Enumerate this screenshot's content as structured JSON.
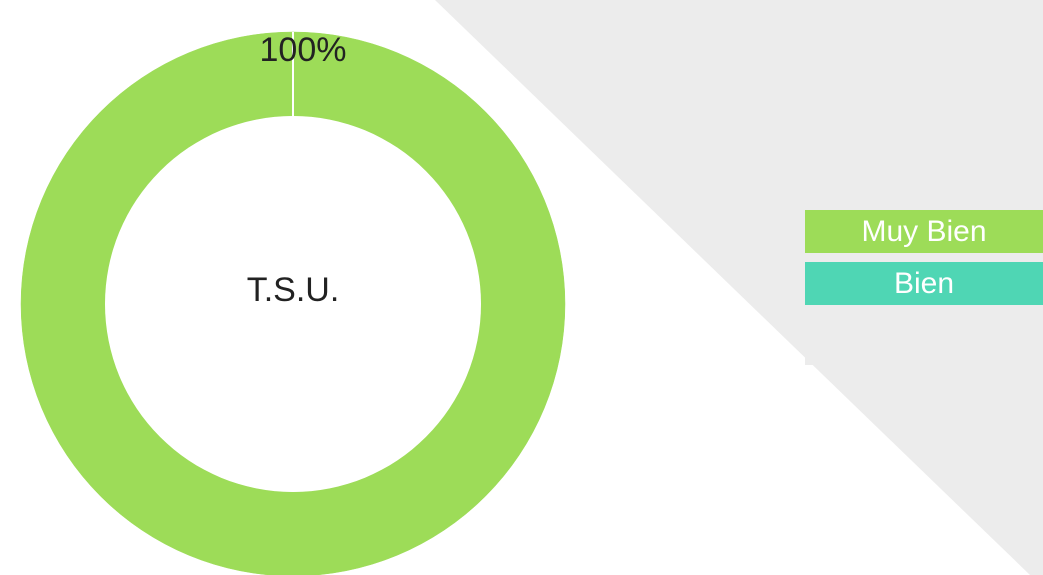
{
  "chart_data": {
    "type": "donut",
    "center_label": "T.S.U.",
    "categories": [
      "Muy Bien",
      "Bien"
    ],
    "values": [
      100,
      0
    ],
    "value_labels": [
      "100%",
      null
    ],
    "colors": [
      "#9ddc58",
      "#4fd6b4"
    ]
  }
}
